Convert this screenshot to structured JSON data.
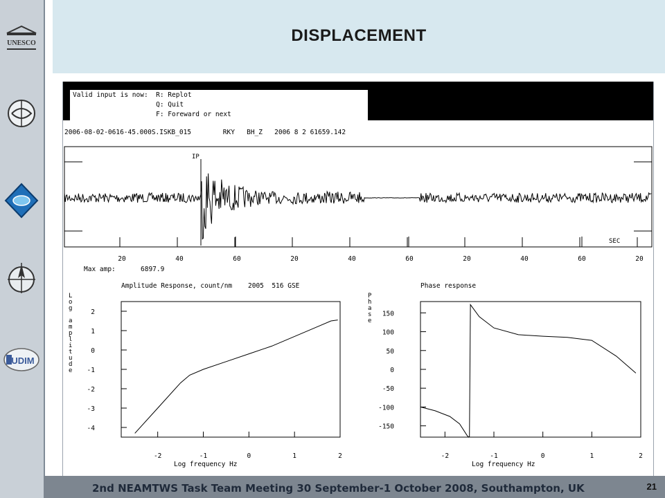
{
  "slide": {
    "title": "DISPLACEMENT",
    "footer": "2nd NEAMTWS Task Team Meeting 30 September-1 October 2008, Southampton, UK",
    "page_number": "21",
    "logos": [
      "unesco-logo",
      "ioc-logo",
      "diamond-logo",
      "compass-logo",
      "udim-logo"
    ],
    "unesco_text": "UNESCO",
    "udim_text": "UDIM"
  },
  "app": {
    "menu": {
      "line1": "Valid input is now:  R: Replot",
      "line2": "                     Q: Quit",
      "line3": "                     F: Foreward or next"
    },
    "trace_header": "2006-08-02-0616-45.000S.ISKB_015        RKY   BH_Z   2006 8 2 61659.142",
    "phase_pick": "IP",
    "sec_label": "SEC",
    "time_ticks": [
      "20",
      "40",
      "60",
      "20",
      "40",
      "60",
      "20",
      "40",
      "60",
      "20"
    ],
    "max_amp_label": "Max amp:",
    "max_amp_value": "6897.9",
    "amp_title": "Amplitude Response, count/nm    2005  516 GSE",
    "amp_ylabel_chars": [
      "L",
      "o",
      "g",
      "",
      "a",
      "m",
      "p",
      "l",
      "i",
      "t",
      "u",
      "d",
      "e"
    ],
    "amp_yticks": [
      "2",
      "1",
      "0",
      "-1",
      "-2",
      "-3",
      "-4"
    ],
    "amp_xticks": [
      "-2",
      "-1",
      "0",
      "1",
      "2"
    ],
    "amp_xlabel": "Log frequency  Hz",
    "phase_title": "Phase response",
    "phase_ylabel_chars": [
      "P",
      "h",
      "a",
      "s",
      "e"
    ],
    "phase_yticks": [
      "150",
      "100",
      "50",
      "0",
      "-50",
      "-100",
      "-150"
    ],
    "phase_xticks": [
      "-2",
      "-1",
      "0",
      "1",
      "2"
    ],
    "phase_xlabel": "Log frequency  Hz"
  },
  "chart_data": [
    {
      "type": "line",
      "title": "Amplitude Response, count/nm    2005  516 GSE",
      "xlabel": "Log frequency  Hz",
      "ylabel": "Log amplitude",
      "xlim": [
        -2.8,
        2.0
      ],
      "ylim": [
        -4.5,
        2.5
      ],
      "series": [
        {
          "x": [
            -2.5,
            -2.0,
            -1.5,
            -1.3,
            -1.0,
            -0.5,
            0.0,
            0.5,
            1.0,
            1.5,
            1.8,
            1.95
          ],
          "y": [
            -4.3,
            -3.0,
            -1.7,
            -1.3,
            -1.0,
            -0.6,
            -0.2,
            0.2,
            0.7,
            1.2,
            1.5,
            1.55
          ]
        }
      ]
    },
    {
      "type": "line",
      "title": "Phase response",
      "xlabel": "Log frequency  Hz",
      "ylabel": "Phase",
      "xlim": [
        -2.5,
        2.0
      ],
      "ylim": [
        -180,
        180
      ],
      "series": [
        {
          "x": [
            -2.5,
            -2.2,
            -1.9,
            -1.7,
            -1.55,
            -1.52,
            -1.5,
            -1.48,
            -1.3,
            -1.0,
            -0.5,
            0.0,
            0.5,
            1.0,
            1.5,
            1.9
          ],
          "y": [
            -100,
            -110,
            -125,
            -145,
            -175,
            -180,
            -178,
            172,
            140,
            110,
            92,
            88,
            85,
            77,
            35,
            -10
          ]
        }
      ]
    }
  ]
}
